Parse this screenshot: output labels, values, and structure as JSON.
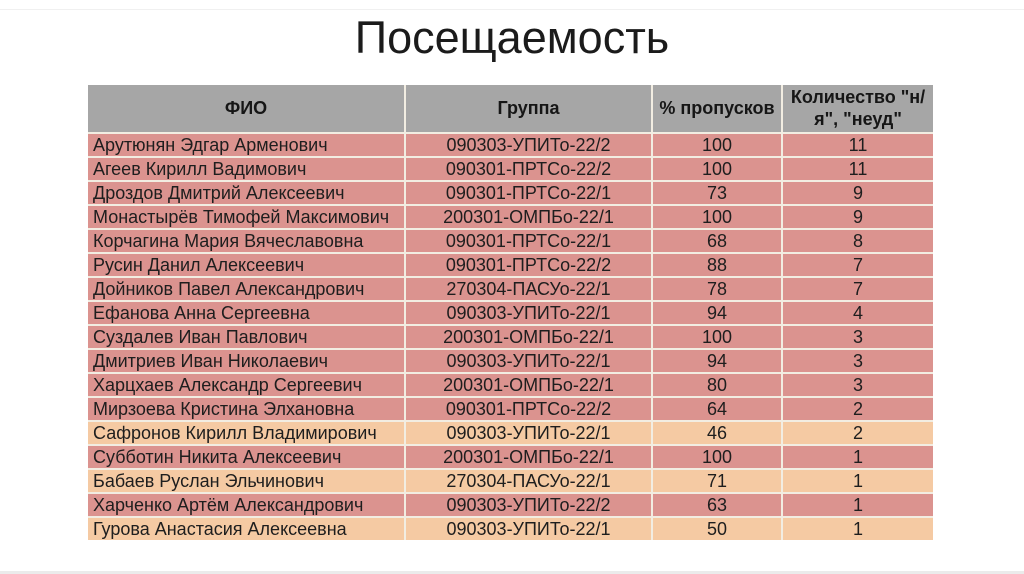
{
  "slide": {
    "title": "Посещаемость"
  },
  "table": {
    "columns": [
      {
        "key": "fio",
        "label": "ФИО"
      },
      {
        "key": "group",
        "label": "Группа"
      },
      {
        "key": "percent",
        "label": "% пропусков"
      },
      {
        "key": "count",
        "label": "Количество \"н/я\", \"неуд\""
      }
    ],
    "rows": [
      {
        "fio": "Арутюнян Эдгар Арменович",
        "group": "090303-УПИТо-22/2",
        "percent": 100,
        "count": 11,
        "shade": "pink"
      },
      {
        "fio": "Агеев Кирилл Вадимович",
        "group": "090301-ПРТСо-22/2",
        "percent": 100,
        "count": 11,
        "shade": "pink"
      },
      {
        "fio": "Дроздов Дмитрий Алексеевич",
        "group": "090301-ПРТСо-22/1",
        "percent": 73,
        "count": 9,
        "shade": "pink"
      },
      {
        "fio": "Монастырёв Тимофей Максимович",
        "group": "200301-ОМПБо-22/1",
        "percent": 100,
        "count": 9,
        "shade": "pink"
      },
      {
        "fio": "Корчагина Мария Вячеславовна",
        "group": "090301-ПРТСо-22/1",
        "percent": 68,
        "count": 8,
        "shade": "pink"
      },
      {
        "fio": "Русин Данил Алексеевич",
        "group": "090301-ПРТСо-22/2",
        "percent": 88,
        "count": 7,
        "shade": "pink"
      },
      {
        "fio": "Дойников Павел Александрович",
        "group": "270304-ПАСУо-22/1",
        "percent": 78,
        "count": 7,
        "shade": "pink"
      },
      {
        "fio": "Ефанова Анна Сергеевна",
        "group": "090303-УПИТо-22/1",
        "percent": 94,
        "count": 4,
        "shade": "pink"
      },
      {
        "fio": "Суздалев Иван Павлович",
        "group": "200301-ОМПБо-22/1",
        "percent": 100,
        "count": 3,
        "shade": "pink"
      },
      {
        "fio": "Дмитриев Иван Николаевич",
        "group": "090303-УПИТо-22/1",
        "percent": 94,
        "count": 3,
        "shade": "pink"
      },
      {
        "fio": "Харцхаев Александр Сергеевич",
        "group": "200301-ОМПБо-22/1",
        "percent": 80,
        "count": 3,
        "shade": "pink"
      },
      {
        "fio": "Мирзоева Кристина Элхановна",
        "group": "090301-ПРТСо-22/2",
        "percent": 64,
        "count": 2,
        "shade": "pink"
      },
      {
        "fio": "Сафронов Кирилл Владимирович",
        "group": "090303-УПИТо-22/1",
        "percent": 46,
        "count": 2,
        "shade": "peach"
      },
      {
        "fio": "Субботин Никита Алексеевич",
        "group": "200301-ОМПБо-22/1",
        "percent": 100,
        "count": 1,
        "shade": "pink"
      },
      {
        "fio": "Бабаев Руслан Эльчинович",
        "group": "270304-ПАСУо-22/1",
        "percent": 71,
        "count": 1,
        "shade": "peach"
      },
      {
        "fio": "Харченко Артём Александрович",
        "group": "090303-УПИТо-22/2",
        "percent": 63,
        "count": 1,
        "shade": "pink"
      },
      {
        "fio": "Гурова Анастасия Алексеевна",
        "group": "090303-УПИТо-22/1",
        "percent": 50,
        "count": 1,
        "shade": "peach"
      }
    ]
  },
  "colors": {
    "slide_bg": "#ffffff",
    "title_text": "#1b1b1b",
    "header_bg": "#a6a6a6",
    "row_pink": "#db938f",
    "row_peach": "#f5caa3",
    "grid_line": "#f2ede2",
    "bottom_edge": "#ebebeb"
  }
}
